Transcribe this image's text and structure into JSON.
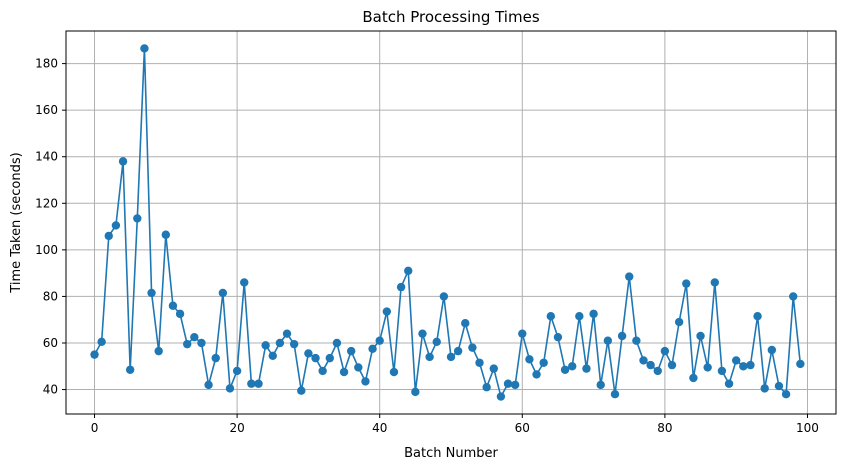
{
  "chart_data": {
    "type": "line",
    "title": "Batch Processing Times",
    "xlabel": "Batch Number",
    "ylabel": "Time Taken (seconds)",
    "xlim": [
      -4,
      104
    ],
    "ylim": [
      29.5,
      194
    ],
    "xticks": [
      0,
      20,
      40,
      60,
      80,
      100
    ],
    "yticks": [
      40,
      60,
      80,
      100,
      120,
      140,
      160,
      180
    ],
    "grid": true,
    "marker": "circle",
    "color": "#1f77b4",
    "series": [
      {
        "x": [
          0,
          1,
          2,
          3,
          4,
          5,
          6,
          7,
          8,
          9,
          10,
          11,
          12,
          13,
          14,
          15,
          16,
          17,
          18,
          19,
          20,
          21,
          22,
          23,
          24,
          25,
          26,
          27,
          28,
          29,
          30,
          31,
          32,
          33,
          34,
          35,
          36,
          37,
          38,
          39,
          40,
          41,
          42,
          43,
          44,
          45,
          46,
          47,
          48,
          49,
          50,
          51,
          52,
          53,
          54,
          55,
          56,
          57,
          58,
          59,
          60,
          61,
          62,
          63,
          64,
          65,
          66,
          67,
          68,
          69,
          70,
          71,
          72,
          73,
          74,
          75,
          76,
          77,
          78,
          79,
          80,
          81,
          82,
          83,
          84,
          85,
          86,
          87,
          88,
          89,
          90,
          91,
          92,
          93,
          94,
          95,
          96,
          97,
          98,
          99
        ],
        "values": [
          55,
          60.5,
          106,
          110.5,
          138,
          48.5,
          113.5,
          186.5,
          81.5,
          56.5,
          106.5,
          76,
          72.5,
          59.5,
          62.5,
          60,
          42,
          53.5,
          81.5,
          40.5,
          48,
          86,
          42.5,
          42.5,
          59,
          54.5,
          60,
          64,
          59.5,
          39.5,
          55.5,
          53.5,
          48,
          53.5,
          60,
          47.5,
          56.5,
          49.5,
          43.5,
          57.5,
          61,
          73.5,
          47.5,
          84,
          91,
          39,
          64,
          54,
          60.5,
          80,
          54,
          56.5,
          68.5,
          58,
          51.5,
          41,
          49,
          37,
          42.5,
          42,
          64,
          53,
          46.5,
          51.5,
          71.5,
          62.5,
          48.5,
          50,
          71.5,
          49,
          72.5,
          42,
          61,
          38,
          63,
          88.5,
          61,
          52.5,
          50.5,
          48,
          56.5,
          50.5,
          69,
          85.5,
          45,
          63,
          49.5,
          86,
          48,
          42.5,
          52.5,
          50,
          50.5,
          71.5,
          40.5,
          57,
          41.5,
          38,
          80,
          51
        ]
      }
    ]
  }
}
